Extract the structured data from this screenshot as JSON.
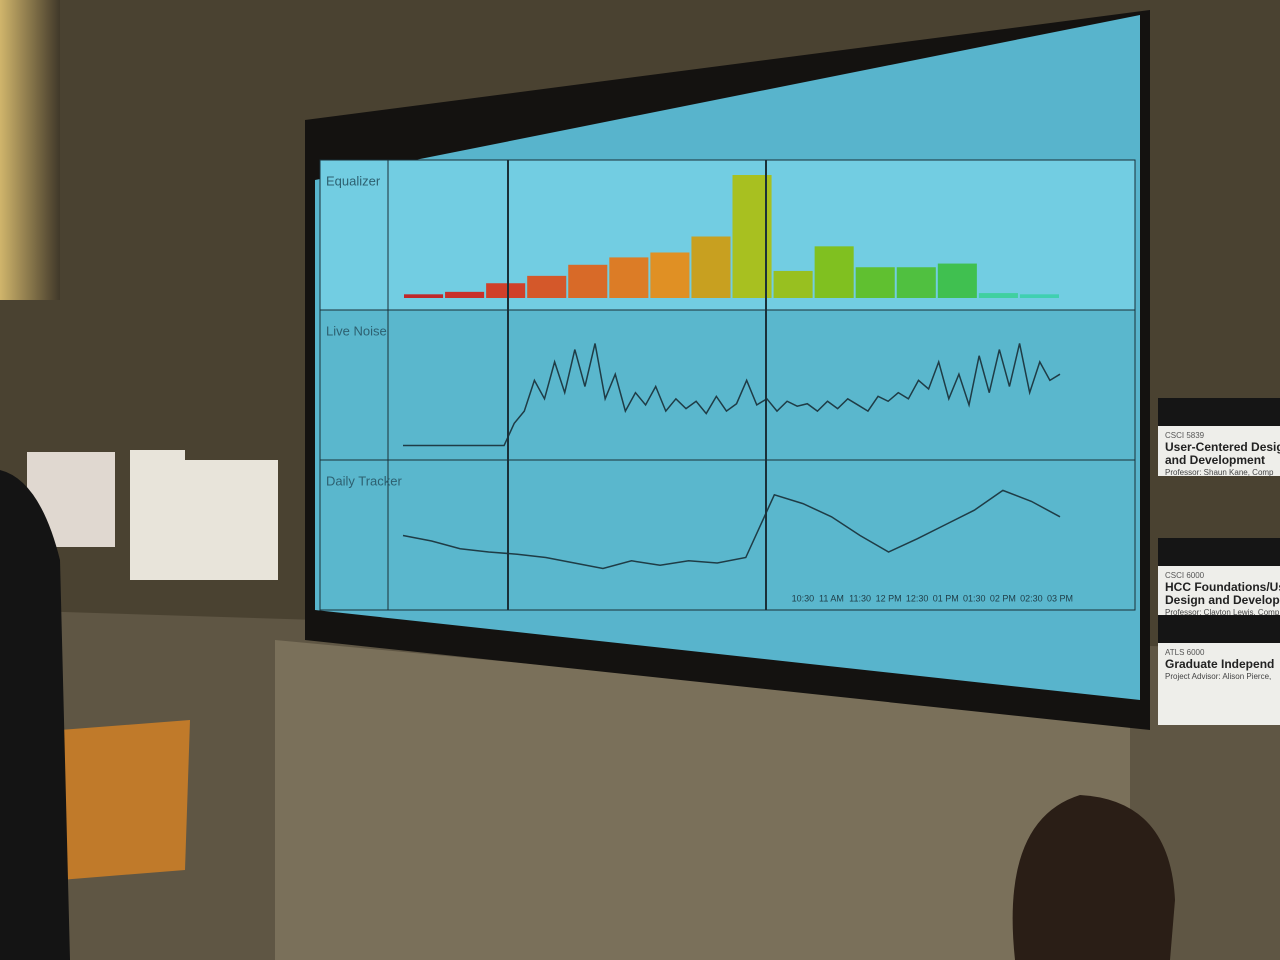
{
  "chart_data": [
    {
      "type": "bar",
      "title": "Equalizer",
      "values": [
        3,
        5,
        12,
        18,
        27,
        33,
        37,
        50,
        100,
        22,
        42,
        25,
        25,
        28,
        4,
        3
      ],
      "colors": [
        "#c0282a",
        "#c8302a",
        "#d0402a",
        "#d4582a",
        "#d86a28",
        "#dc7c26",
        "#e09024",
        "#c8a020",
        "#a8c020",
        "#98c020",
        "#80c020",
        "#60c030",
        "#50c040",
        "#40c050",
        "#40d0a0",
        "#40d0b0"
      ],
      "ylim": [
        0,
        100
      ]
    },
    {
      "type": "line",
      "title": "Live Noise",
      "color": "#1f3c46",
      "values": [
        2,
        2,
        2,
        2,
        2,
        2,
        2,
        2,
        2,
        2,
        2,
        20,
        30,
        55,
        40,
        70,
        45,
        80,
        50,
        85,
        40,
        60,
        30,
        45,
        35,
        50,
        30,
        40,
        32,
        38,
        28,
        42,
        30,
        36,
        55,
        35,
        40,
        30,
        38,
        34,
        36,
        30,
        38,
        32,
        40,
        35,
        30,
        42,
        38,
        45,
        40,
        55,
        48,
        70,
        40,
        60,
        35,
        75,
        45,
        80,
        50,
        85,
        45,
        70,
        55,
        60
      ],
      "ylim": [
        0,
        100
      ]
    },
    {
      "type": "line",
      "title": "Daily Tracker",
      "color": "#1f3c46",
      "categories": [
        null,
        null,
        null,
        null,
        null,
        null,
        null,
        null,
        null,
        null,
        null,
        null,
        null,
        null,
        "10:30",
        "11 AM",
        "11:30",
        "12 PM",
        "12:30",
        "01 PM",
        "01:30",
        "02 PM",
        "02:30",
        "03 PM"
      ],
      "values": [
        45,
        40,
        33,
        30,
        28,
        25,
        20,
        15,
        22,
        18,
        22,
        20,
        25,
        82,
        74,
        62,
        45,
        30,
        42,
        55,
        68,
        86,
        76,
        62
      ],
      "ylim": [
        0,
        100
      ]
    }
  ],
  "posters": [
    {
      "code": "CSCI 5839",
      "title": "User-Centered Desig",
      "title2": "and Development",
      "byline": "Professor: Shaun Kane, Comp"
    },
    {
      "code": "CSCI 6000",
      "title": "HCC Foundations/Us",
      "title2": "Design and Develop",
      "byline": "Professor: Clayton Lewis, Comp"
    },
    {
      "code": "ATLS 6000",
      "title": "Graduate Independ",
      "title2": "",
      "byline": "Project Advisor: Alison Pierce,"
    }
  ]
}
